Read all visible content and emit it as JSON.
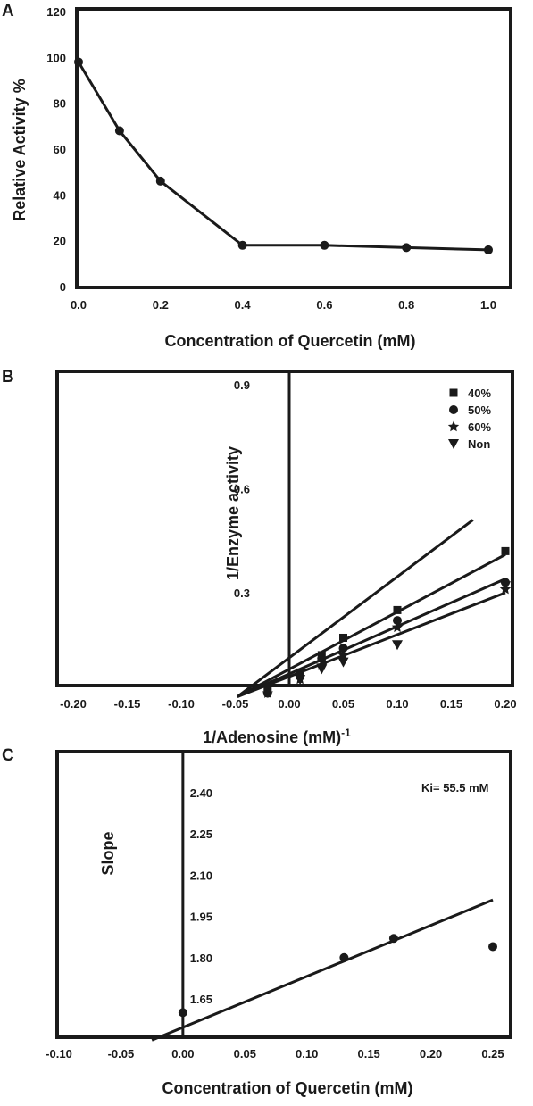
{
  "chart_data": [
    {
      "panel": "A",
      "type": "line",
      "xlabel": "Concentration of Quercetin (mM)",
      "ylabel": "Relative Activity %",
      "xlim": [
        0,
        1.0
      ],
      "ylim": [
        0,
        120
      ],
      "xticks": [
        0.0,
        0.2,
        0.4,
        0.6,
        0.8,
        1.0
      ],
      "yticks": [
        0,
        20,
        40,
        60,
        80,
        100,
        120
      ],
      "xtick_labels": [
        "0.0",
        "0.2",
        "0.4",
        "0.6",
        "0.8",
        "1.0"
      ],
      "ytick_labels": [
        "0",
        "20",
        "40",
        "60",
        "80",
        "100",
        "120"
      ],
      "series": [
        {
          "x": [
            0,
            0.1,
            0.2,
            0.4,
            0.6,
            0.8,
            1.0
          ],
          "y": [
            98,
            68,
            46,
            18,
            18,
            17,
            16
          ]
        }
      ],
      "grid": false
    },
    {
      "panel": "B",
      "type": "scatter",
      "xlabel": "1/Adenosine (mM)",
      "xlabel_superscript": "-1",
      "ylabel": "1/Enzyme activity",
      "xlim": [
        -0.23,
        0.22
      ],
      "ylim": [
        0,
        1.0
      ],
      "xticks": [
        -0.2,
        -0.15,
        -0.1,
        -0.05,
        0.0,
        0.05,
        0.1,
        0.15,
        0.2
      ],
      "yticks": [
        0.3,
        0.6,
        0.9
      ],
      "xtick_labels": [
        "-0.20",
        "-0.15",
        "-0.10",
        "-0.05",
        "0.00",
        "0.05",
        "0.10",
        "0.15",
        "0.20"
      ],
      "ytick_labels": [
        "0.3",
        "0.6",
        "0.9"
      ],
      "legend_position": "top-right",
      "series": [
        {
          "name": "40%",
          "marker": "square",
          "x": [
            -0.02,
            0.01,
            0.03,
            0.05,
            0.1,
            0.2
          ],
          "y": [
            0.02,
            0.07,
            0.12,
            0.17,
            0.25,
            0.42
          ]
        },
        {
          "name": "50%",
          "marker": "circle",
          "x": [
            -0.02,
            0.01,
            0.03,
            0.05,
            0.1,
            0.2
          ],
          "y": [
            0.01,
            0.06,
            0.11,
            0.14,
            0.22,
            0.33
          ]
        },
        {
          "name": "60%",
          "marker": "star",
          "x": [
            -0.02,
            0.01,
            0.03,
            0.05,
            0.1,
            0.2
          ],
          "y": [
            0.01,
            0.05,
            0.09,
            0.12,
            0.2,
            0.31
          ]
        },
        {
          "name": "Non",
          "marker": "triangle-down",
          "x": [
            0.01,
            0.03,
            0.05,
            0.1,
            0.2
          ],
          "y": [
            0.05,
            0.08,
            0.1,
            0.15,
            0.32
          ]
        }
      ],
      "fit_lines": [
        {
          "x": [
            -0.048,
            0.17
          ],
          "y": [
            0.0,
            0.51
          ]
        },
        {
          "x": [
            -0.048,
            0.2
          ],
          "y": [
            0.0,
            0.41
          ]
        },
        {
          "x": [
            -0.048,
            0.2
          ],
          "y": [
            0.0,
            0.34
          ]
        },
        {
          "x": [
            -0.048,
            0.2
          ],
          "y": [
            0.0,
            0.3
          ]
        }
      ],
      "grid": false
    },
    {
      "panel": "C",
      "type": "scatter",
      "xlabel": "Concentration of Quercetin (mM)",
      "ylabel": "Slope",
      "annotation": "Ki= 55.5 mM",
      "xlim": [
        -0.1,
        0.27
      ],
      "ylim": [
        1.5,
        2.55
      ],
      "xticks": [
        -0.1,
        -0.05,
        0.0,
        0.05,
        0.1,
        0.15,
        0.2,
        0.25
      ],
      "yticks": [
        1.65,
        1.8,
        1.95,
        2.1,
        2.25,
        2.4
      ],
      "xtick_labels": [
        "-0.10",
        "-0.05",
        "0.00",
        "0.05",
        "0.10",
        "0.15",
        "0.20",
        "0.25"
      ],
      "ytick_labels": [
        "1.65",
        "1.80",
        "1.95",
        "2.10",
        "2.25",
        "2.40"
      ],
      "series": [
        {
          "x": [
            0.0,
            0.13,
            0.17,
            0.25
          ],
          "y": [
            1.6,
            1.8,
            1.87,
            1.84
          ]
        }
      ],
      "fit_line": {
        "x": [
          -0.025,
          0.25
        ],
        "y": [
          1.5,
          2.01
        ]
      },
      "grid": false
    }
  ]
}
